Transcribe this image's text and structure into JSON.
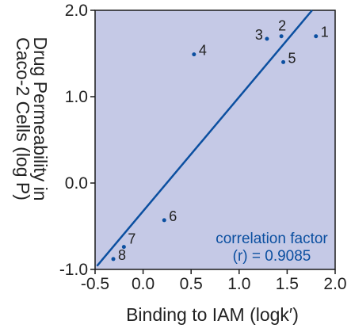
{
  "colors": {
    "plot_background": "#c5c9e6",
    "frame": "#1a1a1a",
    "point": "#0b4fa0",
    "line": "#0b4fa0",
    "annotation": "#0b4fa0",
    "text": "#222222"
  },
  "chart_data": {
    "type": "scatter",
    "title": "",
    "xlabel": "Binding to IAM (logk′)",
    "ylabel_lines": [
      "Drug Permeability in",
      "Caco-2 Cells (log P)"
    ],
    "xlim": [
      -0.5,
      2.0
    ],
    "ylim": [
      -1.0,
      2.0
    ],
    "x_ticks": [
      {
        "value": -0.5,
        "label": "-0.5"
      },
      {
        "value": 0.0,
        "label": "0.0"
      },
      {
        "value": 0.5,
        "label": "0.5"
      },
      {
        "value": 1.0,
        "label": "1.0"
      },
      {
        "value": 1.5,
        "label": "1.5"
      },
      {
        "value": 2.0,
        "label": "2.0"
      }
    ],
    "y_ticks": [
      {
        "value": -1.0,
        "label": "-1.0"
      },
      {
        "value": 0.0,
        "label": "0.0"
      },
      {
        "value": 1.0,
        "label": "1.0"
      },
      {
        "value": 2.0,
        "label": "2.0"
      }
    ],
    "grid": false,
    "points": [
      {
        "label": "1",
        "x": 1.8,
        "y": 1.7
      },
      {
        "label": "2",
        "x": 1.44,
        "y": 1.7
      },
      {
        "label": "3",
        "x": 1.29,
        "y": 1.67
      },
      {
        "label": "4",
        "x": 0.53,
        "y": 1.49
      },
      {
        "label": "5",
        "x": 1.46,
        "y": 1.4
      },
      {
        "label": "6",
        "x": 0.22,
        "y": -0.43
      },
      {
        "label": "7",
        "x": -0.2,
        "y": -0.74
      },
      {
        "label": "8",
        "x": -0.31,
        "y": -0.88
      }
    ],
    "fit_line": {
      "x": [
        -0.48,
        1.76
      ],
      "y": [
        -0.96,
        2.0
      ]
    },
    "annotation": [
      "correlation factor",
      "(r) = 0.9085"
    ]
  }
}
